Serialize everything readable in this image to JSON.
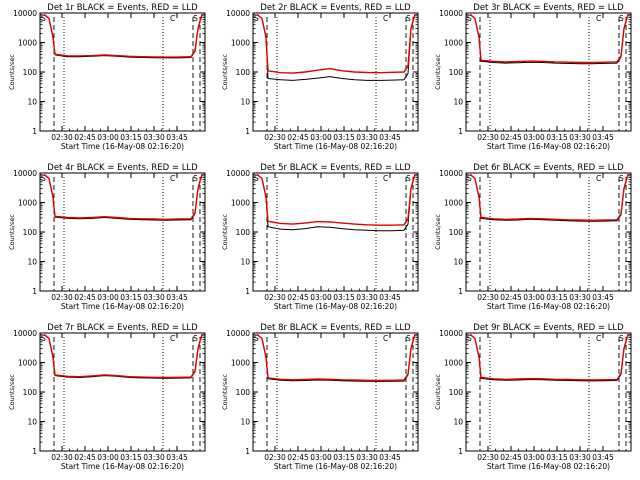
{
  "chart_data": [
    {
      "type": "line",
      "title": "Det 1r BLACK = Events, RED = LLD",
      "xlabel": "Start Time (16-May-08 02:16:20)",
      "ylabel": "Counts/sec",
      "yscale": "log",
      "ylim": [
        1,
        10000
      ],
      "xticks": [
        "02:30",
        "02:45",
        "03:00",
        "03:15",
        "03:30",
        "03:45"
      ],
      "yticks": [
        "1",
        "10",
        "100",
        "1000",
        "10000"
      ],
      "markers": [
        "S",
        "C",
        "S"
      ],
      "series": [
        {
          "color": "#000000",
          "values": [
            380,
            330,
            330,
            340,
            360,
            340,
            320,
            310,
            305,
            300,
            300,
            310
          ]
        },
        {
          "color": "#e00000",
          "values": [
            400,
            350,
            350,
            360,
            380,
            360,
            340,
            330,
            325,
            320,
            320,
            330
          ]
        }
      ]
    },
    {
      "type": "line",
      "title": "Det 2r BLACK = Events, RED = LLD",
      "xlabel": "Start Time (16-May-08 02:16:20)",
      "ylabel": "Counts/sec",
      "yscale": "log",
      "ylim": [
        1,
        10000
      ],
      "xticks": [
        "02:30",
        "02:45",
        "03:00",
        "03:15",
        "03:30",
        "03:45"
      ],
      "yticks": [
        "1",
        "10",
        "100",
        "1000",
        "10000"
      ],
      "markers": [
        "S",
        "C",
        "S"
      ],
      "series": [
        {
          "color": "#000000",
          "values": [
            60,
            55,
            52,
            56,
            62,
            70,
            60,
            55,
            52,
            52,
            53,
            55
          ]
        },
        {
          "color": "#e00000",
          "values": [
            110,
            95,
            92,
            100,
            115,
            130,
            110,
            100,
            96,
            95,
            98,
            100
          ]
        }
      ]
    },
    {
      "type": "line",
      "title": "Det 3r BLACK = Events, RED = LLD",
      "xlabel": "Start Time (16-May-08 02:16:20)",
      "ylabel": "Counts/sec",
      "yscale": "log",
      "ylim": [
        1,
        10000
      ],
      "xticks": [
        "02:30",
        "02:45",
        "03:00",
        "03:15",
        "03:30",
        "03:45"
      ],
      "yticks": [
        "1",
        "10",
        "100",
        "1000",
        "10000"
      ],
      "markers": [
        "S",
        "C",
        "S"
      ],
      "series": [
        {
          "color": "#000000",
          "values": [
            230,
            210,
            200,
            205,
            215,
            210,
            200,
            195,
            190,
            190,
            195,
            200
          ]
        },
        {
          "color": "#e00000",
          "values": [
            250,
            230,
            220,
            225,
            235,
            230,
            220,
            215,
            210,
            210,
            215,
            220
          ]
        }
      ]
    },
    {
      "type": "line",
      "title": "Det 4r BLACK = Events, RED = LLD",
      "xlabel": "Start Time (16-May-08 02:16:20)",
      "ylabel": "Counts/sec",
      "yscale": "log",
      "ylim": [
        1,
        10000
      ],
      "xticks": [
        "02:30",
        "02:45",
        "03:00",
        "03:15",
        "03:30",
        "03:45"
      ],
      "yticks": [
        "1",
        "10",
        "100",
        "1000",
        "10000"
      ],
      "markers": [
        "S",
        "C",
        "S"
      ],
      "series": [
        {
          "color": "#000000",
          "values": [
            320,
            290,
            280,
            290,
            310,
            290,
            270,
            260,
            255,
            250,
            255,
            260
          ]
        },
        {
          "color": "#e00000",
          "values": [
            340,
            310,
            300,
            310,
            330,
            310,
            290,
            280,
            275,
            270,
            275,
            280
          ]
        }
      ]
    },
    {
      "type": "line",
      "title": "Det 5r BLACK = Events, RED = LLD",
      "xlabel": "Start Time (16-May-08 02:16:20)",
      "ylabel": "Counts/sec",
      "yscale": "log",
      "ylim": [
        1,
        10000
      ],
      "xticks": [
        "02:30",
        "02:45",
        "03:00",
        "03:15",
        "03:30",
        "03:45"
      ],
      "yticks": [
        "1",
        "10",
        "100",
        "1000",
        "10000"
      ],
      "markers": [
        "S",
        "C",
        "S"
      ],
      "series": [
        {
          "color": "#000000",
          "values": [
            150,
            125,
            120,
            130,
            150,
            145,
            130,
            120,
            115,
            110,
            110,
            115
          ]
        },
        {
          "color": "#e00000",
          "values": [
            230,
            195,
            185,
            200,
            225,
            220,
            200,
            185,
            175,
            170,
            170,
            175
          ]
        }
      ]
    },
    {
      "type": "line",
      "title": "Det 6r BLACK = Events, RED = LLD",
      "xlabel": "Start Time (16-May-08 02:16:20)",
      "ylabel": "Counts/sec",
      "yscale": "log",
      "ylim": [
        1,
        10000
      ],
      "xticks": [
        "02:30",
        "02:45",
        "03:00",
        "03:15",
        "03:30",
        "03:45"
      ],
      "yticks": [
        "1",
        "10",
        "100",
        "1000",
        "10000"
      ],
      "markers": [
        "S",
        "C",
        "S"
      ],
      "series": [
        {
          "color": "#000000",
          "values": [
            290,
            260,
            250,
            255,
            270,
            260,
            250,
            240,
            235,
            230,
            235,
            240
          ]
        },
        {
          "color": "#e00000",
          "values": [
            310,
            280,
            270,
            275,
            290,
            280,
            270,
            260,
            255,
            250,
            255,
            260
          ]
        }
      ]
    },
    {
      "type": "line",
      "title": "Det 7r BLACK = Events, RED = LLD",
      "xlabel": "Start Time (16-May-08 02:16:20)",
      "ylabel": "Counts/sec",
      "yscale": "log",
      "ylim": [
        1,
        10000
      ],
      "xticks": [
        "02:30",
        "02:45",
        "03:00",
        "03:15",
        "03:30",
        "03:45"
      ],
      "yticks": [
        "1",
        "10",
        "100",
        "1000",
        "10000"
      ],
      "markers": [
        "S",
        "C",
        "S"
      ],
      "series": [
        {
          "color": "#000000",
          "values": [
            360,
            320,
            310,
            330,
            360,
            340,
            310,
            300,
            295,
            290,
            295,
            300
          ]
        },
        {
          "color": "#e00000",
          "values": [
            380,
            340,
            330,
            350,
            380,
            360,
            330,
            320,
            315,
            310,
            315,
            320
          ]
        }
      ]
    },
    {
      "type": "line",
      "title": "Det 8r BLACK = Events, RED = LLD",
      "xlabel": "Start Time (16-May-08 02:16:20)",
      "ylabel": "Counts/sec",
      "yscale": "log",
      "ylim": [
        1,
        10000
      ],
      "xticks": [
        "02:30",
        "02:45",
        "03:00",
        "03:15",
        "03:30",
        "03:45"
      ],
      "yticks": [
        "1",
        "10",
        "100",
        "1000",
        "10000"
      ],
      "markers": [
        "S",
        "C",
        "S"
      ],
      "series": [
        {
          "color": "#000000",
          "values": [
            280,
            250,
            240,
            245,
            255,
            250,
            240,
            235,
            230,
            228,
            230,
            235
          ]
        },
        {
          "color": "#e00000",
          "values": [
            300,
            270,
            260,
            265,
            275,
            270,
            260,
            255,
            250,
            248,
            250,
            255
          ]
        }
      ]
    },
    {
      "type": "line",
      "title": "Det 9r BLACK = Events, RED = LLD",
      "xlabel": "Start Time (16-May-08 02:16:20)",
      "ylabel": "Counts/sec",
      "yscale": "log",
      "ylim": [
        1,
        10000
      ],
      "xticks": [
        "02:30",
        "02:45",
        "03:00",
        "03:15",
        "03:30",
        "03:45"
      ],
      "yticks": [
        "1",
        "10",
        "100",
        "1000",
        "10000"
      ],
      "markers": [
        "S",
        "C",
        "S"
      ],
      "series": [
        {
          "color": "#000000",
          "values": [
            290,
            260,
            250,
            255,
            265,
            260,
            250,
            245,
            240,
            238,
            240,
            245
          ]
        },
        {
          "color": "#e00000",
          "values": [
            310,
            280,
            270,
            275,
            285,
            280,
            270,
            265,
            260,
            258,
            260,
            265
          ]
        }
      ]
    }
  ]
}
